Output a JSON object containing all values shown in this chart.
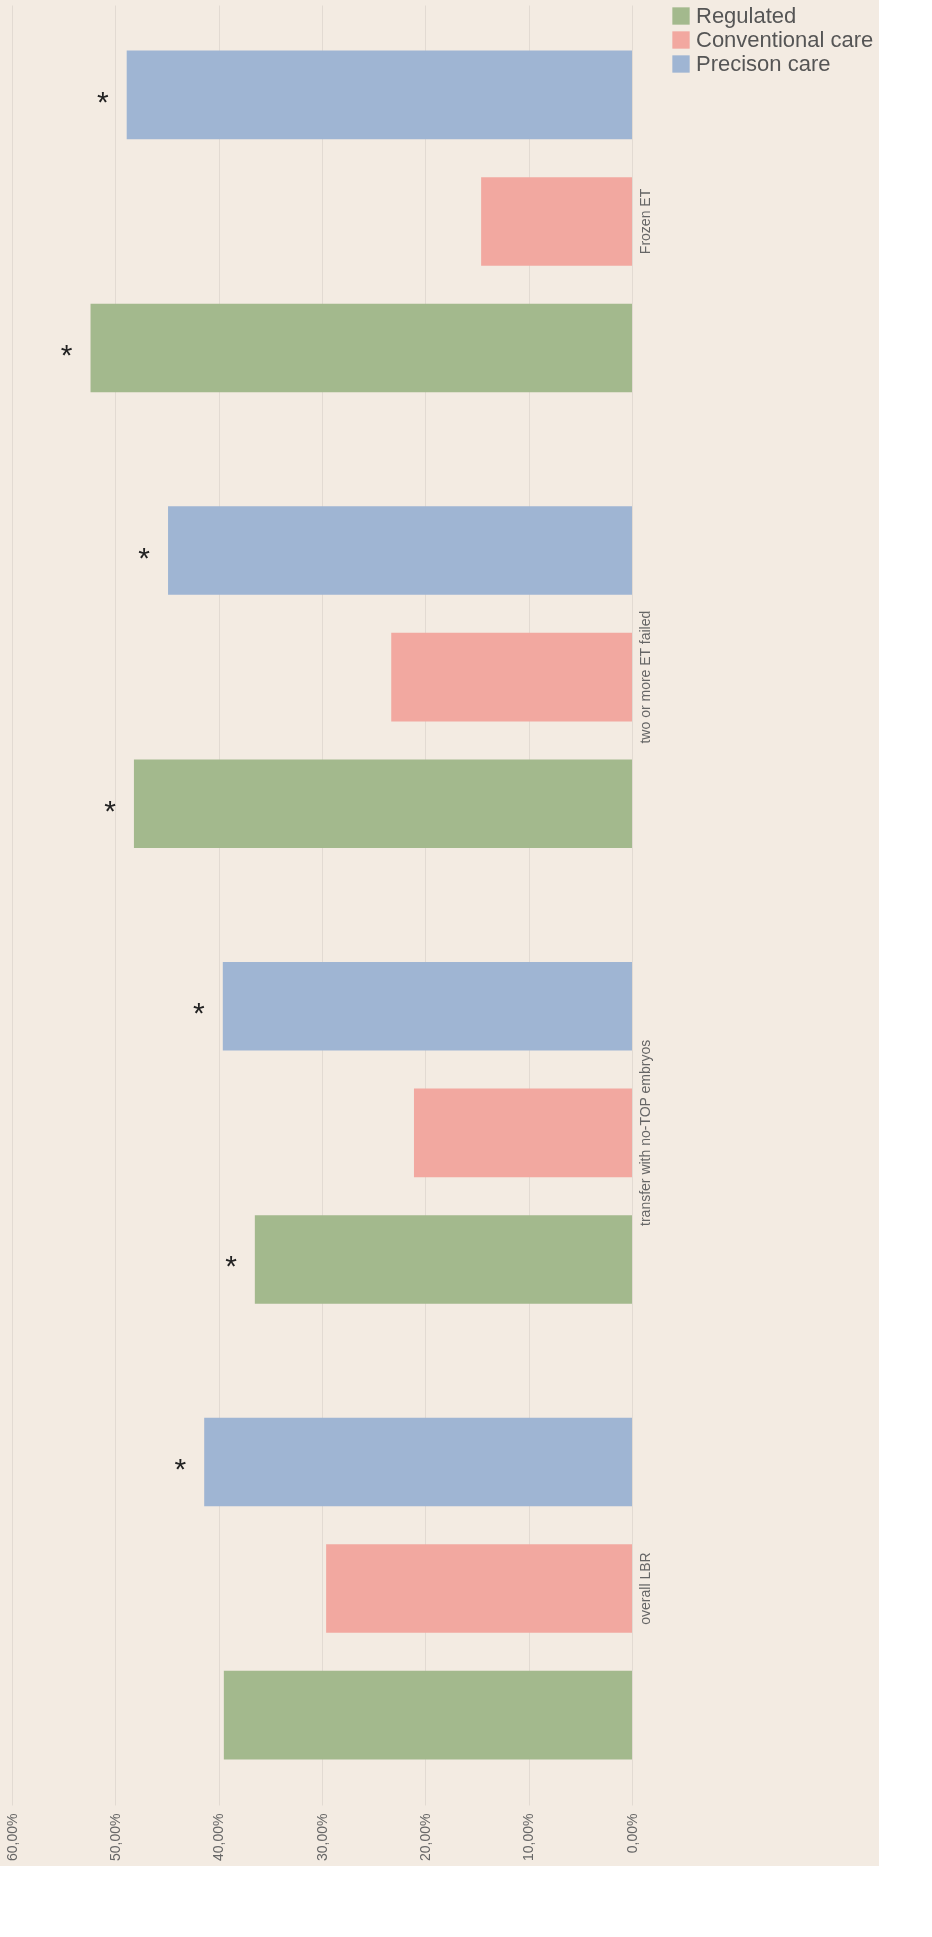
{
  "chart_data": {
    "type": "bar",
    "orientation": "horizontal",
    "categories": [
      "Frozen ET",
      "two or more ET failed",
      "transfer with no-TOP embryos",
      "overall LBR"
    ],
    "series": [
      {
        "name": "Regulated",
        "color": "#a3b98d",
        "values": [
          52.4,
          48.2,
          36.5,
          39.5
        ]
      },
      {
        "name": "Conventional care",
        "color": "#f2a8a0",
        "values": [
          14.6,
          23.3,
          21.1,
          29.6
        ]
      },
      {
        "name": "Precison care",
        "color": "#9fb5d3",
        "values": [
          48.9,
          44.9,
          39.6,
          41.4
        ]
      }
    ],
    "xlim": [
      60,
      0
    ],
    "xticks": [
      {
        "value": 60,
        "label": "60,00%"
      },
      {
        "value": 50,
        "label": "50,00%"
      },
      {
        "value": 40,
        "label": "40,00%"
      },
      {
        "value": 30,
        "label": "30,00%"
      },
      {
        "value": 20,
        "label": "20,00%"
      },
      {
        "value": 10,
        "label": "10,00%"
      },
      {
        "value": 0,
        "label": "0,00%"
      }
    ],
    "grid": "x",
    "legend": "right",
    "annotations": [
      "*",
      "*",
      "*",
      "*",
      "*",
      "*",
      "*"
    ]
  }
}
